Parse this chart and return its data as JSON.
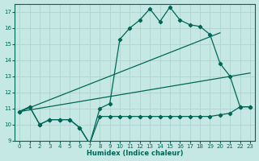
{
  "xlabel": "Humidex (Indice chaleur)",
  "bg_color": "#c5e8e5",
  "grid_color": "#aed4d0",
  "line_color": "#006655",
  "xlim": [
    -0.5,
    23.5
  ],
  "ylim": [
    9,
    17.5
  ],
  "xticks": [
    0,
    1,
    2,
    3,
    4,
    5,
    6,
    7,
    8,
    9,
    10,
    11,
    12,
    13,
    14,
    15,
    16,
    17,
    18,
    19,
    20,
    21,
    22,
    23
  ],
  "yticks": [
    9,
    10,
    11,
    12,
    13,
    14,
    15,
    16,
    17
  ],
  "curve_x": [
    0,
    1,
    2,
    3,
    4,
    5,
    6,
    7,
    8,
    9,
    10,
    11,
    12,
    13,
    14,
    15,
    16,
    17,
    18,
    19,
    20,
    21,
    22,
    23
  ],
  "curve_y": [
    10.8,
    11.1,
    10.0,
    10.3,
    10.3,
    10.3,
    9.8,
    8.8,
    11.0,
    11.3,
    15.3,
    16.0,
    16.5,
    17.2,
    16.4,
    17.3,
    16.5,
    16.2,
    16.1,
    15.6,
    13.8,
    13.0,
    11.1,
    11.1
  ],
  "flat_x": [
    0,
    1,
    2,
    3,
    4,
    5,
    6,
    7,
    8,
    9,
    10,
    11,
    12,
    13,
    14,
    15,
    16,
    17,
    18,
    19,
    20,
    21,
    22,
    23
  ],
  "flat_y": [
    10.8,
    11.1,
    10.0,
    10.3,
    10.3,
    10.3,
    9.8,
    8.8,
    10.5,
    10.5,
    10.5,
    10.5,
    10.5,
    10.5,
    10.5,
    10.5,
    10.5,
    10.5,
    10.5,
    10.5,
    10.6,
    10.7,
    11.1,
    11.1
  ],
  "trend1_x": [
    0,
    20
  ],
  "trend1_y": [
    10.8,
    15.7
  ],
  "trend2_x": [
    0,
    23
  ],
  "trend2_y": [
    10.8,
    13.2
  ]
}
